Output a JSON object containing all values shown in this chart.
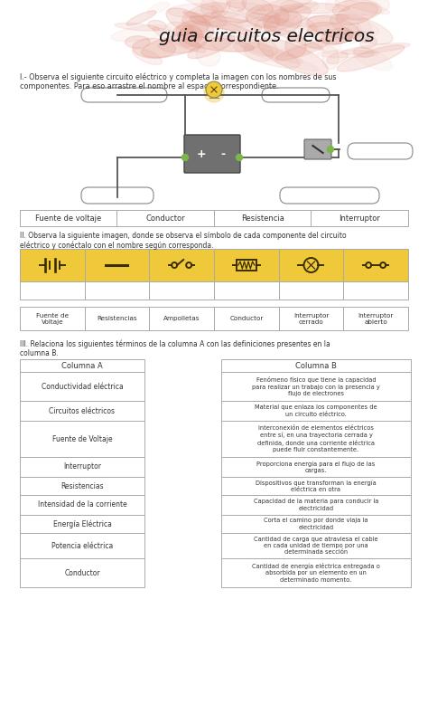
{
  "title": "guia circuitos electricos",
  "bg_color": "#ffffff",
  "watercolor_color": "#e09080",
  "section1_text": "I.- Observa el siguiente circuito eléctrico y completa la imagen con los nombres de sus\ncomponentes. Para eso arrastre el nombre al espacio correspondiente.",
  "section1_labels": [
    "Fuente de voltaje",
    "Conductor",
    "Resistencia",
    "Interruptor"
  ],
  "section2_text": "II. Observa la siguiente imagen, donde se observa el símbolo de cada componente del circuito\neléctrico y conéctalo con el nombre según corresponda.",
  "section2_labels": [
    "Fuente de\nVoltaje",
    "Resistencias",
    "Ampolletas",
    "Conductor",
    "Interruptor\ncerrado",
    "Interruptor\nabierto"
  ],
  "section3_text": "III. Relaciona los siguientes términos de la columna A con las definiciones presentes en la\ncolumna B.",
  "col_a_header": "Columna A",
  "col_b_header": "Columna B",
  "col_a": [
    "Conductividad eléctrica",
    "Circuitos eléctricos",
    "Fuente de Voltaje",
    "Interruptor",
    "Resistencias",
    "Intensidad de la corriente",
    "Energía Eléctrica",
    "Potencia eléctrica",
    "Conductor"
  ],
  "col_b": [
    "Fenómeno físico que tiene la capacidad\npara realizar un trabajo con la presencia y\nflujo de electrones",
    "Material que enlaza los componentes de\nun circuito eléctrico.",
    "interconexión de elementos eléctricos\nentre sí, en una trayectoria cerrada y\ndefinida, donde una corriente eléctrica\npuede fluir constantemente.",
    "Proporciona energía para el flujo de las\ncargas.",
    "Dispositivos que transforman la energía\neléctrica en otra",
    "Capacidad de la materia para conducir la\nelectricidad",
    "Corta el camino por donde viaja la\nelectricidad",
    "Cantidad de carga que atraviesa el cable\nen cada unidad de tiempo por una\ndeterminada sección",
    "Cantidad de energía eléctrica entregada o\nabsorbida por un elemento en un\ndeterminado momento."
  ],
  "yellow": "#f0c93a",
  "yellow_light": "#f5d76e",
  "table_border": "#aaaaaa",
  "text_color": "#333333",
  "wire_color": "#555555",
  "sym_color": "#3a2e00"
}
